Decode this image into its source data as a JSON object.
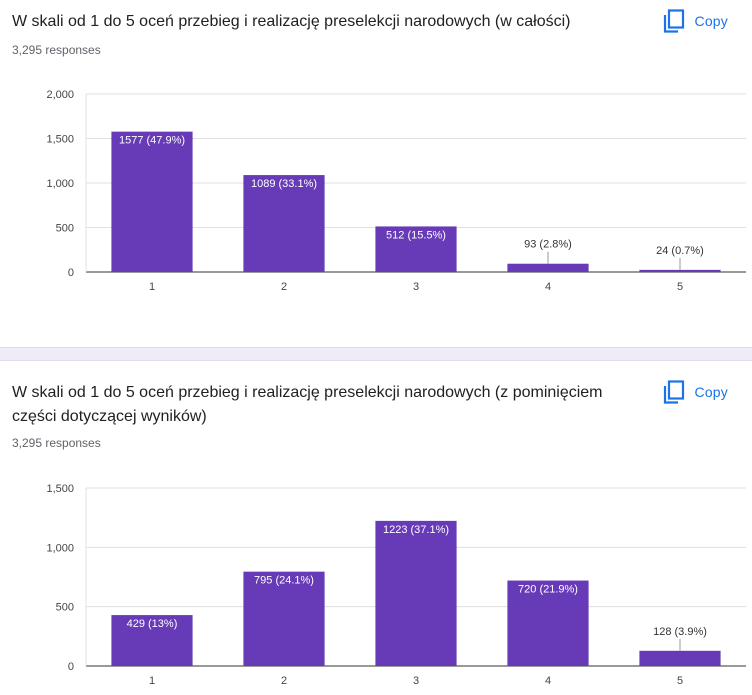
{
  "colors": {
    "bar": "#673ab7",
    "accent": "#1a73e8",
    "grid": "#e0e0e0"
  },
  "charts": [
    {
      "title": "W skali od 1 do 5 oceń przebieg i realizację preselekcji narodowych (w całości)",
      "responses": "3,295 responses",
      "copy_label": "Copy",
      "copy_icon": "copy-icon"
    },
    {
      "title": "W skali od 1 do 5 oceń przebieg i realizację preselekcji narodowych (z pominięciem części dotyczącej wyników)",
      "responses": "3,295 responses",
      "copy_label": "Copy",
      "copy_icon": "copy-icon"
    }
  ],
  "chart_data": [
    {
      "type": "bar",
      "title": "W skali od 1 do 5 oceń przebieg i realizację preselekcji narodowych (w całości)",
      "categories": [
        "1",
        "2",
        "3",
        "4",
        "5"
      ],
      "values": [
        1577,
        1089,
        512,
        93,
        24
      ],
      "labels": [
        "1577 (47.9%)",
        "1089 (33.1%)",
        "512 (15.5%)",
        "93 (2.8%)",
        "24 (0.7%)"
      ],
      "yticks": [
        0,
        500,
        1000,
        1500,
        2000
      ],
      "ytick_labels": [
        "0",
        "500",
        "1,000",
        "1,500",
        "2,000"
      ],
      "ylim": [
        0,
        2000
      ],
      "xlabel": "",
      "ylabel": "",
      "grid": true
    },
    {
      "type": "bar",
      "title": "W skali od 1 do 5 oceń przebieg i realizację preselekcji narodowych (z pominięciem części dotyczącej wyników)",
      "categories": [
        "1",
        "2",
        "3",
        "4",
        "5"
      ],
      "values": [
        429,
        795,
        1223,
        720,
        128
      ],
      "labels": [
        "429 (13%)",
        "795 (24.1%)",
        "1223 (37.1%)",
        "720 (21.9%)",
        "128 (3.9%)"
      ],
      "yticks": [
        0,
        500,
        1000,
        1500
      ],
      "ytick_labels": [
        "0",
        "500",
        "1,000",
        "1,500"
      ],
      "ylim": [
        0,
        1500
      ],
      "xlabel": "",
      "ylabel": "",
      "grid": true
    }
  ]
}
